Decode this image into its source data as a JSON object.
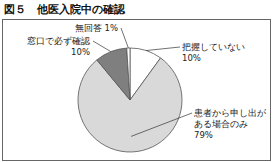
{
  "chart_data": {
    "type": "pie",
    "title": "図５　他医入院中の確認",
    "categories": [
      "把握していない",
      "患者から申し出がある場合のみ",
      "窓口で必ず確認",
      "無回答"
    ],
    "values": [
      10,
      79,
      10,
      1
    ],
    "value_labels": [
      "10%",
      "79%",
      "10%",
      "1%"
    ],
    "colors": [
      "#ffffff",
      "#d9d9d9",
      "#7f7f7f",
      "#ffffff"
    ],
    "data_labels": true
  }
}
